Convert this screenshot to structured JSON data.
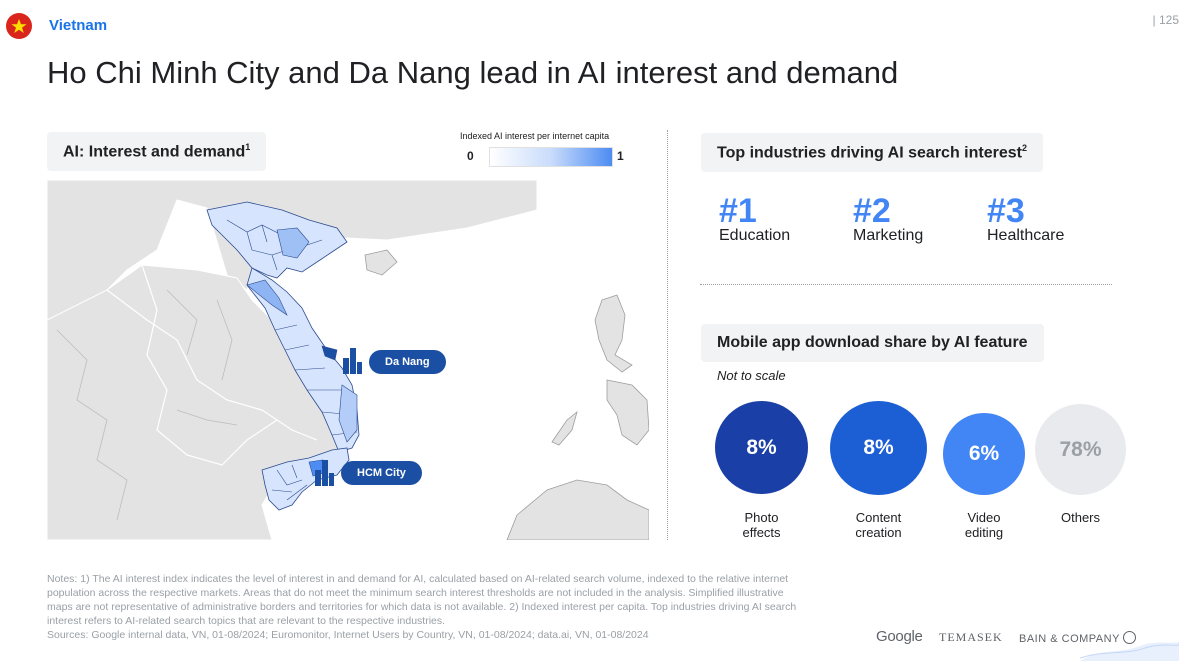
{
  "header": {
    "country": "Vietnam",
    "page_number": "| 125"
  },
  "title": "Ho Chi Minh City and Da Nang lead in AI interest and demand",
  "map_section": {
    "heading": "AI: Interest and demand",
    "heading_sup": "1",
    "legend_caption": "Indexed AI interest per internet capita",
    "legend_min": "0",
    "legend_max": "1",
    "legend_colors": [
      "#ffffff",
      "#c9dcfb",
      "#4d8cf2"
    ],
    "callouts": [
      {
        "label": "Da Nang"
      },
      {
        "label": "HCM City"
      }
    ]
  },
  "industries": {
    "heading": "Top industries driving AI search interest",
    "heading_sup": "2",
    "items": [
      {
        "rank": "#1",
        "name": "Education"
      },
      {
        "rank": "#2",
        "name": "Marketing"
      },
      {
        "rank": "#3",
        "name": "Healthcare"
      }
    ]
  },
  "mobile": {
    "heading": "Mobile app download share by AI feature",
    "note": "Not to scale",
    "bubbles": [
      {
        "value": "8%",
        "label_1": "Photo",
        "label_2": "effects",
        "color": "#1a3fa6"
      },
      {
        "value": "8%",
        "label_1": "Content",
        "label_2": "creation",
        "color": "#1c5fd4"
      },
      {
        "value": "6%",
        "label_1": "Video",
        "label_2": "editing",
        "color": "#4285f4"
      },
      {
        "value": "78%",
        "label_1": "Others",
        "label_2": "",
        "color": "#e8eaed"
      }
    ]
  },
  "notes": "Notes: 1) The AI interest index indicates the level of interest in and demand for AI, calculated based on AI-related search volume, indexed to the relative internet population across the respective markets. Areas that do not meet the minimum search interest thresholds are not included in the analysis. Simplified illustrative maps are not representative of administrative borders and territories for which data is not available. 2) Indexed interest per capita. Top industries driving AI search interest refers to AI-related search topics that are relevant to the respective industries.",
  "sources": "Sources: Google internal data, VN, 01-08/2024; Euromonitor, Internet Users by Country, VN, 01-08/2024; data.ai, VN, 01-08/2024",
  "logos": {
    "google": "Google",
    "temasek": "TEMASEK",
    "bain": "BAIN & COMPANY"
  }
}
